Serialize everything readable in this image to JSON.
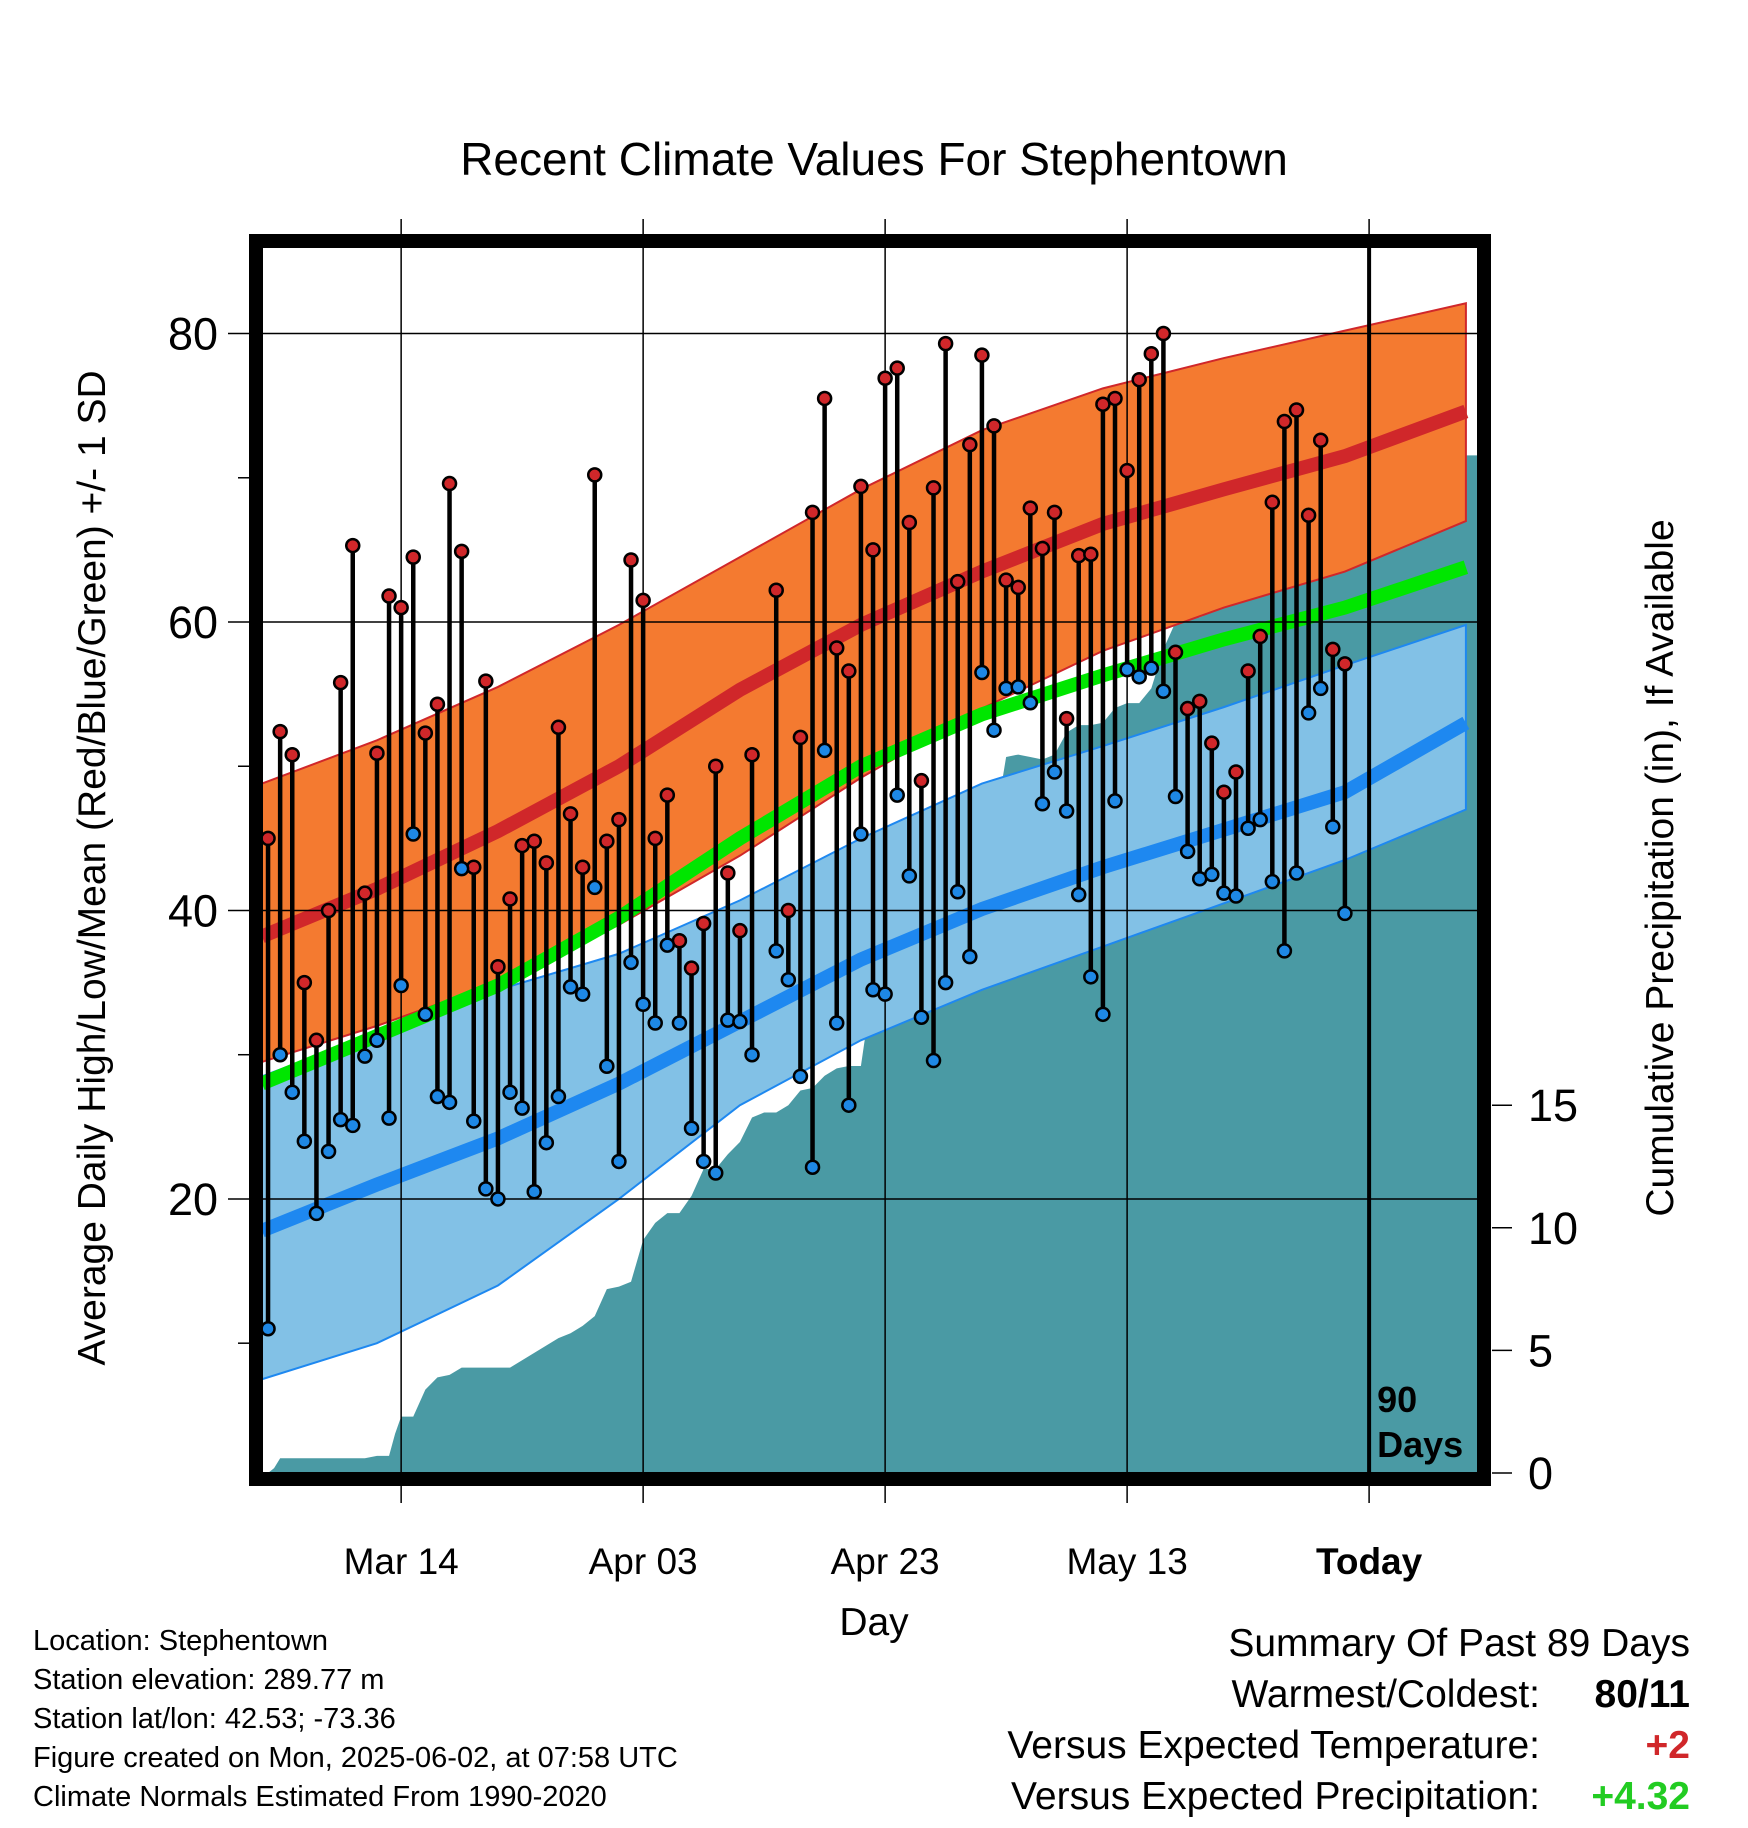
{
  "colors": {
    "high_normal_band": "#f47a30",
    "high_normal_line": "#d0272a",
    "low_normal_band": "#82c1e6",
    "low_normal_line": "#1e88f0",
    "mean_line": "#00e600",
    "precip_fill": "#4a9aa4",
    "high_point": "#d0272a",
    "low_point": "#1e88e5",
    "temp_anomaly": "#d0272a",
    "precip_anomaly": "#22cc22"
  },
  "chart_data": {
    "type": "line",
    "title": "Recent Climate Values For Stephentown",
    "xlabel": "Day",
    "ylabel": "Average Daily High/Low/Mean (Red/Blue/Green) +/- 1 SD",
    "y2label": "Cumulative Precipitation (in), If Available",
    "x_ticks": [
      {
        "day": 12,
        "label": "Mar 14"
      },
      {
        "day": 32,
        "label": "Apr 03"
      },
      {
        "day": 52,
        "label": "Apr 23"
      },
      {
        "day": 72,
        "label": "May 13"
      },
      {
        "day": 92,
        "label": "Today"
      }
    ],
    "y_ticks": [
      20,
      40,
      60,
      80
    ],
    "y_minor_ticks": [
      10,
      30,
      50,
      70
    ],
    "y2_ticks": [
      0,
      5,
      10,
      15
    ],
    "ylim": [
      1,
      86
    ],
    "y2lim": [
      0,
      50
    ],
    "xlim": [
      0.5,
      101
    ],
    "today_marker": {
      "day": 92,
      "label_line1": "90",
      "label_line2": "Days"
    },
    "grid": true,
    "normals": {
      "days": [
        0,
        10,
        20,
        30,
        40,
        50,
        60,
        70,
        80,
        90,
        100
      ],
      "high_mean": [
        38.2,
        41.5,
        45.5,
        50.0,
        55.3,
        59.8,
        63.5,
        66.8,
        69.2,
        71.5,
        74.6
      ],
      "high_upper": [
        48.8,
        51.8,
        55.5,
        59.8,
        64.5,
        69.2,
        73.3,
        76.2,
        78.3,
        80.2,
        82.1
      ],
      "high_lower": [
        29.5,
        32.0,
        35.0,
        39.0,
        43.8,
        49.2,
        54.0,
        58.0,
        61.0,
        63.5,
        67.0
      ],
      "low_mean": [
        17.8,
        21.0,
        24.2,
        28.0,
        32.3,
        36.6,
        40.1,
        43.0,
        45.6,
        48.2,
        53.0
      ],
      "low_upper": [
        28.5,
        31.5,
        34.5,
        37.0,
        40.7,
        45.0,
        48.8,
        51.4,
        54.1,
        57.0,
        59.8
      ],
      "low_lower": [
        7.5,
        10.0,
        14.0,
        20.0,
        26.5,
        31.0,
        34.5,
        37.5,
        40.5,
        43.5,
        47.0
      ],
      "mean": [
        28.0,
        31.3,
        34.8,
        39.5,
        45.0,
        50.0,
        53.6,
        56.3,
        58.8,
        61.0,
        63.8
      ]
    },
    "daily_high": [
      45,
      52.4,
      50.8,
      35,
      31,
      40,
      55.8,
      65.3,
      41.2,
      50.9,
      61.8,
      61,
      64.5,
      52.3,
      54.3,
      69.6,
      64.9,
      43,
      55.9,
      36.1,
      40.8,
      44.5,
      44.8,
      43.3,
      52.7,
      46.7,
      43,
      70.2,
      44.8,
      46.3,
      64.3,
      61.5,
      45,
      48,
      37.9,
      36,
      39.1,
      50,
      42.6,
      38.6,
      50.8,
      null,
      62.2,
      40,
      52,
      67.6,
      75.5,
      58.2,
      56.6,
      69.4,
      65,
      76.9,
      77.6,
      66.9,
      49,
      69.3,
      79.3,
      62.8,
      72.3,
      78.5,
      73.6,
      62.9,
      62.4,
      67.9,
      65.1,
      67.6,
      53.3,
      64.6,
      64.7,
      75.1,
      75.5,
      70.5,
      76.8,
      78.6,
      80,
      57.9,
      54,
      54.5,
      51.6,
      48.2,
      49.6,
      56.6,
      59,
      68.3,
      73.9,
      74.7,
      67.4,
      72.6,
      58.1,
      57.1
    ],
    "daily_low": [
      11,
      30,
      27.4,
      24,
      19,
      23.3,
      25.5,
      25.1,
      29.9,
      31,
      25.6,
      34.8,
      45.3,
      32.8,
      27.1,
      26.7,
      42.9,
      25.4,
      20.7,
      20,
      27.4,
      26.3,
      20.5,
      23.9,
      27.1,
      34.7,
      34.2,
      41.6,
      29.2,
      22.6,
      36.4,
      33.5,
      32.2,
      37.6,
      32.2,
      24.9,
      22.6,
      21.8,
      32.4,
      32.3,
      30,
      null,
      37.2,
      35.2,
      28.5,
      22.2,
      51.1,
      32.2,
      26.5,
      45.3,
      34.5,
      34.2,
      48,
      42.4,
      32.6,
      29.6,
      35,
      41.3,
      36.8,
      56.5,
      52.5,
      55.4,
      55.5,
      54.4,
      47.4,
      49.6,
      46.9,
      41.1,
      35.4,
      32.8,
      47.6,
      56.7,
      56.2,
      56.8,
      55.2,
      47.9,
      44.1,
      42.2,
      42.5,
      41.2,
      41,
      45.7,
      46.3,
      42,
      37.2,
      42.6,
      53.7,
      55.4,
      45.8,
      39.8
    ],
    "precip_days": [
      1,
      1.5,
      2,
      3,
      4,
      5,
      6,
      7,
      8,
      9,
      10,
      11,
      11.5,
      12,
      13,
      14,
      15,
      16,
      17,
      18,
      19,
      20,
      21,
      22,
      23,
      24,
      25,
      26,
      27,
      28,
      29,
      30,
      31,
      32,
      33,
      34,
      35,
      36,
      37,
      38,
      39,
      40,
      41,
      42,
      43,
      44,
      45,
      46,
      47,
      48,
      49,
      50,
      51,
      52,
      53,
      54,
      55,
      56,
      57,
      58,
      59,
      60,
      61,
      62,
      63,
      64,
      65,
      66,
      67,
      68,
      69,
      70,
      71,
      72,
      73,
      74,
      75,
      76,
      77,
      78,
      79,
      80,
      81,
      82,
      83,
      84,
      85,
      86,
      87,
      88,
      89,
      90,
      91,
      92,
      93,
      94,
      95,
      96,
      97,
      98,
      99,
      100,
      101
    ],
    "precip_cumulative": [
      0,
      0.2,
      0.6,
      0.6,
      0.6,
      0.6,
      0.6,
      0.6,
      0.6,
      0.6,
      0.7,
      0.7,
      1.6,
      2.3,
      2.3,
      3.4,
      3.9,
      4.0,
      4.3,
      4.3,
      4.3,
      4.3,
      4.3,
      4.6,
      4.9,
      5.2,
      5.5,
      5.7,
      6.0,
      6.4,
      7.5,
      7.6,
      7.8,
      9.5,
      10.2,
      10.6,
      10.6,
      11.3,
      12.4,
      12.4,
      13.0,
      13.5,
      14.5,
      14.7,
      14.7,
      15.0,
      15.6,
      15.7,
      16.2,
      16.5,
      16.6,
      16.6,
      20.0,
      20.0,
      20.0,
      20.1,
      20.2,
      20.5,
      22.5,
      23.5,
      25.1,
      25.3,
      26.2,
      29.2,
      29.3,
      29.2,
      29.1,
      29.3,
      30.2,
      30.5,
      30.5,
      30.6,
      31.2,
      31.4,
      31.4,
      32.0,
      33.6,
      34.7,
      34.9,
      34.9,
      35.1,
      35.6,
      36.3,
      36.9,
      39.5,
      41.5,
      41.5,
      41.5,
      41.5,
      41.5,
      41.5,
      41.5,
      41.5,
      41.5,
      41.5,
      41.5,
      41.5,
      41.5,
      41.5,
      41.5,
      41.5,
      41.5,
      41.5
    ]
  },
  "info": {
    "location": "Location: Stephentown",
    "elevation": "Station elevation: 289.77 m",
    "latlon": "Station lat/lon: 42.53; -73.36",
    "created": "Figure created on Mon, 2025-06-02, at 07:58 UTC",
    "normals": "Climate Normals Estimated From 1990-2020"
  },
  "summary": {
    "heading": "Summary Of Past 89 Days",
    "warmest_coldest_label": "Warmest/Coldest:",
    "warmest_coldest_value": "80/11",
    "temp_label": "Versus Expected Temperature:",
    "temp_value": "+2",
    "precip_label": "Versus Expected Precipitation:",
    "precip_value": "+4.32"
  }
}
